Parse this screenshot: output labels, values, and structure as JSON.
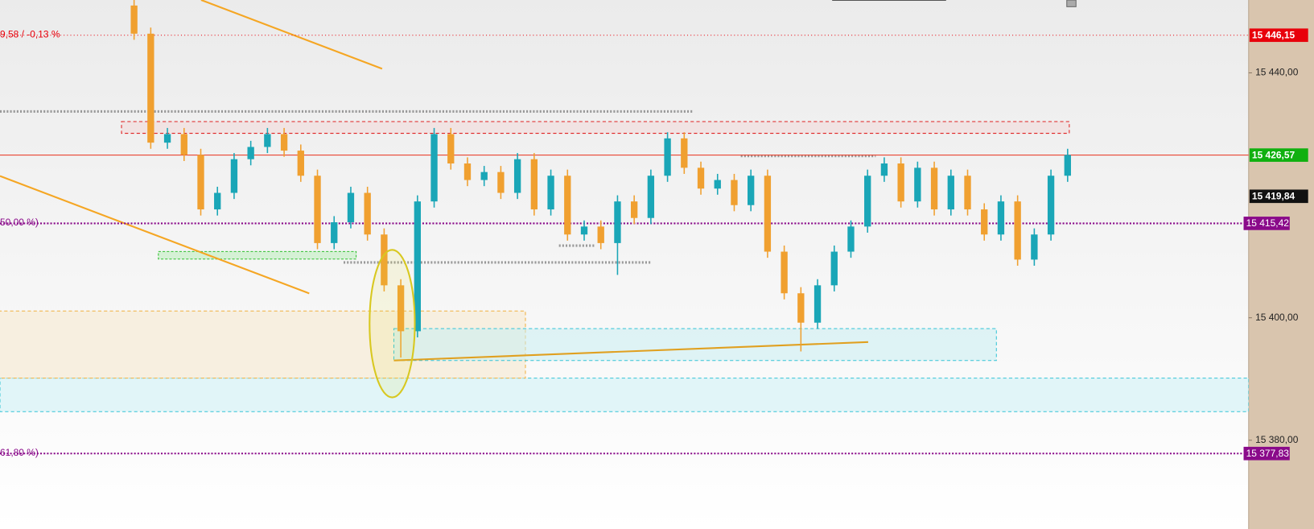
{
  "chart_data": {
    "type": "candlestick",
    "up_color": "#1aa6b7",
    "down_color": "#f0a030",
    "open": [
      15451.0,
      15446.4,
      15428.6,
      15430.0,
      15426.6,
      15417.7,
      15420.4,
      15425.9,
      15427.9,
      15430.0,
      15427.3,
      15423.2,
      15412.2,
      15415.6,
      15420.4,
      15413.6,
      15405.3,
      15397.8,
      15419.0,
      15430.0,
      15425.2,
      15422.5,
      15423.8,
      15420.4,
      15425.9,
      15417.7,
      15423.2,
      15413.6,
      15414.9,
      15412.2,
      15419.0,
      15416.3,
      15423.2,
      15429.3,
      15424.5,
      15421.1,
      15422.5,
      15418.4,
      15423.2,
      15410.8,
      15404.0,
      15399.2,
      15405.3,
      15410.8,
      15414.9,
      15423.2,
      15425.2,
      15419.0,
      15424.5,
      15417.7,
      15423.2,
      15417.7,
      15413.6,
      15419.0,
      15409.5,
      15413.6,
      15423.2
    ],
    "high": [
      15452.0,
      15447.4,
      15431.0,
      15431.0,
      15427.6,
      15421.4,
      15426.9,
      15428.9,
      15431.0,
      15431.0,
      15428.3,
      15424.2,
      15416.6,
      15421.4,
      15421.4,
      15414.6,
      15406.3,
      15420.0,
      15431.0,
      15431.0,
      15426.2,
      15424.8,
      15424.8,
      15426.9,
      15426.9,
      15424.2,
      15424.2,
      15415.9,
      15415.9,
      15420.0,
      15420.0,
      15424.2,
      15430.3,
      15430.3,
      15425.5,
      15423.5,
      15423.5,
      15424.2,
      15424.2,
      15411.8,
      15405.0,
      15406.3,
      15411.8,
      15415.9,
      15424.2,
      15426.2,
      15426.2,
      15425.5,
      15425.5,
      15424.2,
      15424.2,
      15418.7,
      15420.0,
      15420.0,
      15414.6,
      15424.2,
      15427.6
    ],
    "low": [
      15445.4,
      15427.6,
      15427.6,
      15425.6,
      15416.7,
      15416.7,
      15419.4,
      15424.9,
      15426.9,
      15426.3,
      15422.2,
      15411.2,
      15411.2,
      15414.6,
      15412.6,
      15404.3,
      15393.5,
      15396.8,
      15418.0,
      15424.2,
      15421.5,
      15421.5,
      15419.4,
      15419.4,
      15416.7,
      15416.7,
      15412.6,
      15412.6,
      15411.2,
      15407.0,
      15415.3,
      15415.3,
      15422.2,
      15423.5,
      15420.1,
      15420.1,
      15417.4,
      15417.4,
      15409.8,
      15403.0,
      15394.5,
      15398.2,
      15404.3,
      15409.8,
      15413.9,
      15422.2,
      15418.0,
      15418.0,
      15416.7,
      15416.7,
      15416.7,
      15412.6,
      15412.6,
      15408.5,
      15408.5,
      15412.6,
      15422.2
    ],
    "close": [
      15446.4,
      15428.6,
      15430.0,
      15426.6,
      15417.7,
      15420.4,
      15425.9,
      15427.9,
      15430.0,
      15427.3,
      15423.2,
      15412.2,
      15415.6,
      15420.4,
      15413.6,
      15405.3,
      15397.8,
      15419.0,
      15430.0,
      15425.2,
      15422.5,
      15423.8,
      15420.4,
      15425.9,
      15417.7,
      15423.2,
      15413.6,
      15414.9,
      15412.2,
      15419.0,
      15416.3,
      15423.2,
      15429.3,
      15424.5,
      15421.1,
      15422.5,
      15418.4,
      15423.2,
      15410.8,
      15404.0,
      15399.2,
      15405.3,
      15410.8,
      15414.9,
      15423.2,
      15425.2,
      15419.0,
      15424.5,
      15417.7,
      15423.2,
      15417.7,
      15413.6,
      15419.0,
      15409.5,
      15413.6,
      15423.2,
      15426.6
    ],
    "ylim": [
      15365.5,
      15451.9
    ],
    "yticks": [
      {
        "value": 15440,
        "label": "15 440,00"
      },
      {
        "value": 15400,
        "label": "15 400,00"
      },
      {
        "value": 15380,
        "label": "15 380,00"
      }
    ],
    "levels": [
      {
        "value": 15446.15,
        "label": "15 446,15",
        "color": "#e8000b",
        "line": "dotted",
        "note": "9,58 / -0,13 %"
      },
      {
        "value": 15426.57,
        "label": "15 426,57",
        "color": "#10b010",
        "line": "solid",
        "line_color": "#e8301a"
      },
      {
        "value": 15419.84,
        "label": "15 419,84",
        "color": "#111111",
        "line": "none"
      },
      {
        "value": 15415.42,
        "label": "15 415,42",
        "color": "#8a0a8a",
        "line": "dotted",
        "note": "50,00 %)"
      },
      {
        "value": 15377.83,
        "label": "15 377,83",
        "color": "#8a0a8a",
        "line": "dotted",
        "note": "61,80 %)"
      }
    ]
  }
}
